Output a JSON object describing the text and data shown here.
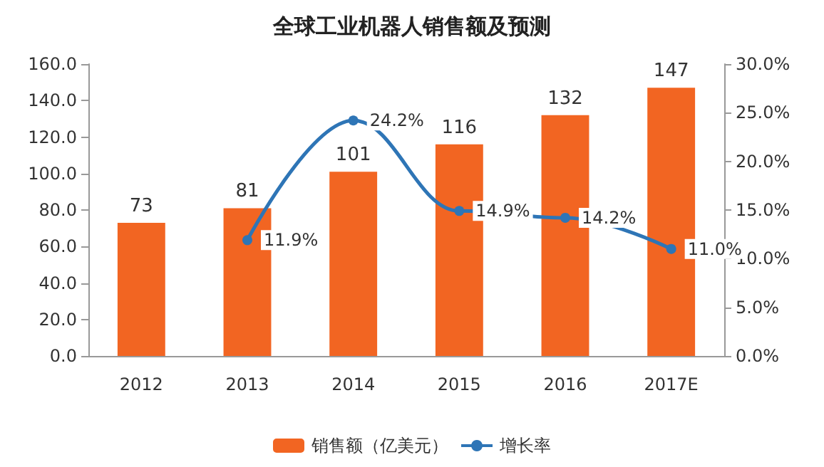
{
  "chart_data": {
    "type": "bar",
    "title": "全球工业机器人销售额及预测",
    "categories": [
      "2012",
      "2013",
      "2014",
      "2015",
      "2016",
      "2017E"
    ],
    "series": [
      {
        "name": "销售额（亿美元）",
        "color": "#f26522",
        "values": [
          73,
          81,
          101,
          116,
          132,
          147
        ],
        "value_labels": [
          "73",
          "81",
          "101",
          "116",
          "132",
          "147"
        ]
      },
      {
        "name": "增长率",
        "type": "line",
        "axis": "y2",
        "color": "#2e75b6",
        "values": [
          null,
          11.9,
          24.2,
          14.9,
          14.2,
          11.0
        ],
        "value_labels": [
          null,
          "11.9%",
          "24.2%",
          "14.9%",
          "14.2%",
          "11.0%"
        ],
        "marker": "circle",
        "line_style": "solid"
      }
    ],
    "ylim": [
      0,
      160
    ],
    "yticks": [
      {
        "value": 0,
        "label": "0.0"
      },
      {
        "value": 20,
        "label": "20.0"
      },
      {
        "value": 40,
        "label": "40.0"
      },
      {
        "value": 60,
        "label": "60.0"
      },
      {
        "value": 80,
        "label": "80.0"
      },
      {
        "value": 100,
        "label": "100.0"
      },
      {
        "value": 120,
        "label": "120.0"
      },
      {
        "value": 140,
        "label": "140.0"
      },
      {
        "value": 160,
        "label": "160.0"
      }
    ],
    "y2lim": [
      0,
      30
    ],
    "y2ticks": [
      {
        "value": 0,
        "label": "0.0%"
      },
      {
        "value": 5,
        "label": "5.0%"
      },
      {
        "value": 10,
        "label": "10.0%"
      },
      {
        "value": 15,
        "label": "15.0%"
      },
      {
        "value": 20,
        "label": "20.0%"
      },
      {
        "value": 25,
        "label": "25.0%"
      },
      {
        "value": 30,
        "label": "30.0%"
      }
    ],
    "legend": "bottom",
    "grid": false
  }
}
